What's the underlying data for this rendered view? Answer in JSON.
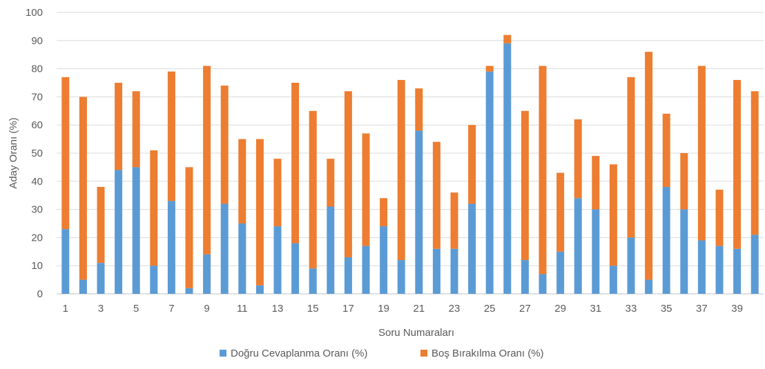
{
  "chart_data": {
    "type": "bar",
    "stacked": true,
    "title": "",
    "xlabel": "Soru Numaraları",
    "ylabel": "Aday Oranı (%)",
    "ylim": [
      0,
      100
    ],
    "yticks": [
      0,
      10,
      20,
      30,
      40,
      50,
      60,
      70,
      80,
      90,
      100
    ],
    "grid": true,
    "legend_position": "bottom",
    "categories": [
      "1",
      "2",
      "3",
      "4",
      "5",
      "6",
      "7",
      "8",
      "9",
      "10",
      "11",
      "12",
      "13",
      "14",
      "15",
      "16",
      "17",
      "18",
      "19",
      "20",
      "21",
      "22",
      "23",
      "24",
      "25",
      "26",
      "27",
      "28",
      "29",
      "30",
      "31",
      "32",
      "33",
      "34",
      "35",
      "36",
      "37",
      "38",
      "39",
      "40"
    ],
    "xtick_labels": [
      "1",
      "",
      "3",
      "",
      "5",
      "",
      "7",
      "",
      "9",
      "",
      "11",
      "",
      "13",
      "",
      "15",
      "",
      "17",
      "",
      "19",
      "",
      "21",
      "",
      "23",
      "",
      "25",
      "",
      "27",
      "",
      "29",
      "",
      "31",
      "",
      "33",
      "",
      "35",
      "",
      "37",
      "",
      "39",
      ""
    ],
    "series": [
      {
        "name": "Doğru Cevaplanma Oranı (%)",
        "color": "#5B9BD5",
        "values": [
          23,
          5,
          11,
          44,
          45,
          10,
          33,
          2,
          14,
          32,
          25,
          3,
          24,
          18,
          9,
          31,
          13,
          17,
          24,
          12,
          58,
          16,
          16,
          32,
          79,
          89,
          12,
          7,
          15,
          34,
          30,
          10,
          20,
          5,
          38,
          30,
          19,
          17,
          16,
          21
        ]
      },
      {
        "name": "Boş Bırakılma Oranı (%)",
        "color": "#ED7D31",
        "values": [
          54,
          65,
          27,
          31,
          27,
          41,
          46,
          43,
          67,
          42,
          30,
          52,
          24,
          57,
          56,
          17,
          59,
          40,
          10,
          64,
          15,
          38,
          20,
          28,
          2,
          3,
          53,
          74,
          28,
          28,
          19,
          36,
          57,
          81,
          26,
          20,
          62,
          20,
          60,
          51
        ]
      }
    ]
  }
}
